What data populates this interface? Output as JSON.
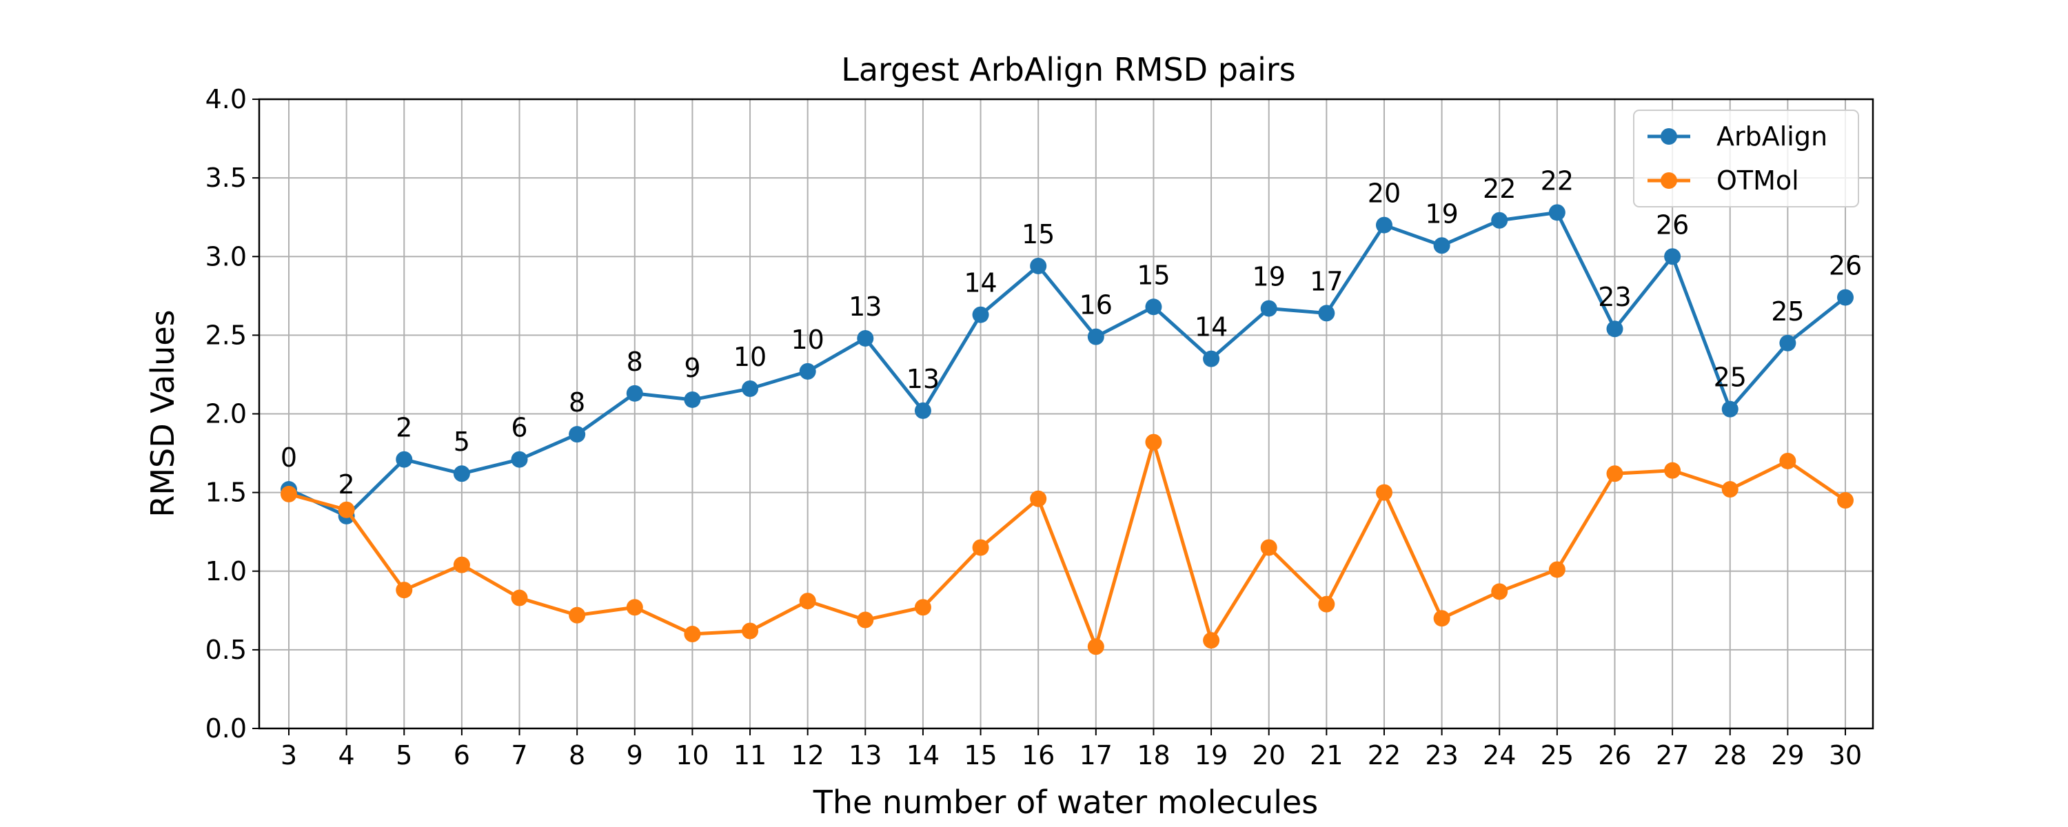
{
  "chart_data": {
    "type": "line",
    "title": "Largest ArbAlign RMSD pairs",
    "xlabel": "The number of water molecules",
    "ylabel": "RMSD Values",
    "categories": [
      "3",
      "4",
      "5",
      "6",
      "7",
      "8",
      "9",
      "10",
      "11",
      "12",
      "13",
      "14",
      "15",
      "16",
      "17",
      "18",
      "19",
      "20",
      "21",
      "22",
      "23",
      "24",
      "25",
      "26",
      "27",
      "28",
      "29",
      "30"
    ],
    "ylim": [
      0,
      4.0
    ],
    "yticks": [
      "0.0",
      "0.5",
      "1.0",
      "1.5",
      "2.0",
      "2.5",
      "3.0",
      "3.5",
      "4.0"
    ],
    "grid": true,
    "legend_position": "top-right",
    "series": [
      {
        "name": "ArbAlign",
        "color": "#1f77b4",
        "values": [
          1.52,
          1.35,
          1.71,
          1.62,
          1.71,
          1.87,
          2.13,
          2.09,
          2.16,
          2.27,
          2.48,
          2.02,
          2.63,
          2.94,
          2.49,
          2.68,
          2.35,
          2.67,
          2.64,
          3.2,
          3.07,
          3.23,
          3.28,
          2.54,
          3.0,
          2.03,
          2.45,
          2.74
        ],
        "point_labels": [
          "0",
          "2",
          "2",
          "5",
          "6",
          "8",
          "8",
          "9",
          "10",
          "10",
          "13",
          "13",
          "14",
          "15",
          "16",
          "15",
          "14",
          "19",
          "17",
          "20",
          "19",
          "22",
          "22",
          "23",
          "26",
          "25",
          "25",
          "26"
        ]
      },
      {
        "name": "OTMol",
        "color": "#ff7f0e",
        "values": [
          1.49,
          1.39,
          0.88,
          1.04,
          0.83,
          0.72,
          0.77,
          0.6,
          0.62,
          0.81,
          0.69,
          0.77,
          1.15,
          1.46,
          0.52,
          1.82,
          0.56,
          1.15,
          0.79,
          1.5,
          0.7,
          0.87,
          1.01,
          1.62,
          1.64,
          1.52,
          1.7,
          1.45
        ]
      }
    ]
  }
}
